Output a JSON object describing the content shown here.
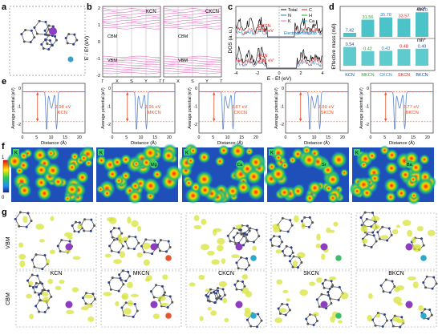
{
  "panel_labels": {
    "a": "a",
    "b": "b",
    "c": "c",
    "d": "d",
    "e": "e",
    "f": "f",
    "g": "g"
  },
  "band": {
    "left_title": "KCN",
    "right_title": "CKCN",
    "ylabel": "E - Ef (eV)",
    "yticks": [
      "2",
      "1",
      "0",
      "-1",
      "-2"
    ],
    "cbm_label": "CBM",
    "vbm_label": "VBM",
    "kpath": [
      "Γ",
      "X",
      "S",
      "Y",
      "Γ"
    ]
  },
  "dos": {
    "legend": [
      "Total",
      "C",
      "N",
      "H",
      "K",
      "Ca"
    ],
    "legend_colors": [
      "#111111",
      "#d62728",
      "#1f77b4",
      "#2ca02c",
      "#e377c2",
      "#17becf"
    ],
    "top_label": "CKCN",
    "top_gap": "2.52 eV",
    "bottom_label": "KCN",
    "bottom_gap": "2.82 eV",
    "note": "Electrons filled CB",
    "ylabel": "DOS (a. u.)",
    "xlabel": "E - Ef (eV)",
    "xticks": [
      "-4",
      "-2",
      "0",
      "2",
      "4"
    ]
  },
  "chart_data": {
    "type": "bar",
    "title": "",
    "ylabel": "Effective mass (m0)",
    "categories": [
      "KCN",
      "MKCN",
      "CKCN",
      "SKCN",
      "BKCN"
    ],
    "category_colors": [
      "#1f4e9c",
      "#2ca02c",
      "#2a7fd4",
      "#d62728",
      "#1f4e9c"
    ],
    "series": [
      {
        "name": "me*",
        "values": [
          7.42,
          31.56,
          35.78,
          33.57,
          45.2
        ]
      },
      {
        "name": "mh*",
        "values": [
          0.54,
          0.42,
          0.43,
          0.48,
          0.49
        ]
      }
    ],
    "value_labels_me": [
      "7.42",
      "31.56",
      "35.78",
      "33.57",
      "45.20"
    ],
    "value_labels_mh": [
      "0.54",
      "0.42",
      "0.43",
      "0.48",
      "0.49"
    ],
    "series_labels": [
      "me*",
      "mh*"
    ]
  },
  "potential": {
    "ylabel": "Average potential (eV)",
    "xlabel": "Distance (Å)",
    "yticks": [
      "0",
      "-1",
      "-2"
    ],
    "xticks": [
      "0",
      "5",
      "10",
      "15",
      "20"
    ],
    "panels": [
      {
        "name": "KCN",
        "gap": "2.98 eV"
      },
      {
        "name": "MKCN",
        "gap": "2.96 eV"
      },
      {
        "name": "CKCN",
        "gap": "2.87 eV"
      },
      {
        "name": "SKCN",
        "gap": "2.80 eV"
      },
      {
        "name": "BKCN",
        "gap": "2.77 eV"
      }
    ]
  },
  "elf": {
    "scale_top": "1",
    "scale_bottom": "0",
    "atom_labels": [
      "K",
      "K",
      "Mg",
      "Ca",
      "Sr",
      "Ba"
    ]
  },
  "orbitals": {
    "row_labels": [
      "VBM",
      "CBM"
    ],
    "names": [
      "KCN",
      "MKCN",
      "CKCN",
      "SKCN",
      "BKCN"
    ]
  },
  "colors": {
    "band_line": "#e377c2",
    "potential_line": "#6a8fd4",
    "gap_arrow": "#e4572e",
    "bar_me": "#4cc3c8",
    "bar_mh": "#5fcbcf"
  }
}
